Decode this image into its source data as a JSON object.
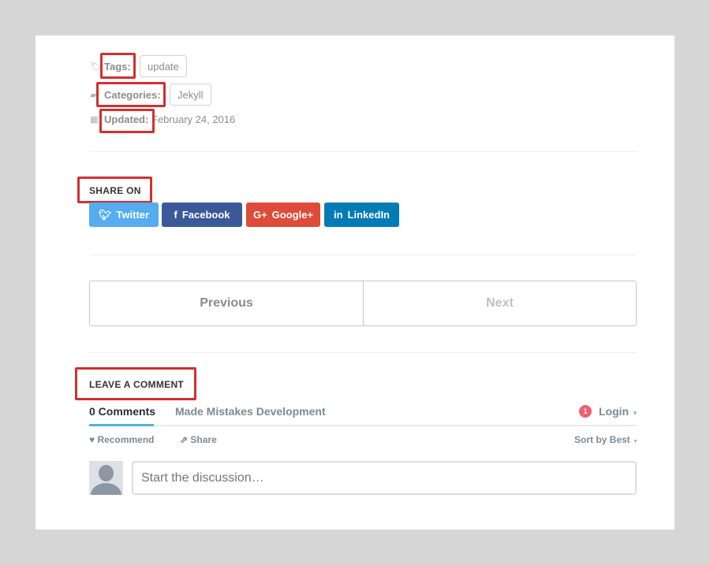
{
  "meta": {
    "tags_label": "Tags:",
    "tags": [
      "update"
    ],
    "categories_label": "Categories:",
    "categories": [
      "Jekyll"
    ],
    "updated_label": "Updated:",
    "updated_value": "February 24, 2016"
  },
  "share": {
    "heading": "SHARE ON",
    "buttons": [
      {
        "label": "Twitter",
        "icon": "twitter-icon",
        "color": "#55acee"
      },
      {
        "label": "Facebook",
        "icon": "facebook-icon",
        "color": "#3b5998"
      },
      {
        "label": "Google+",
        "icon": "google-plus-icon",
        "color": "#dd4b39"
      },
      {
        "label": "LinkedIn",
        "icon": "linkedin-icon",
        "color": "#007bb6"
      }
    ]
  },
  "pagination": {
    "previous": "Previous",
    "next": "Next"
  },
  "comments": {
    "heading": "LEAVE A COMMENT",
    "tab_comments": "0 Comments",
    "tab_community": "Made Mistakes Development",
    "notification_count": "1",
    "login": "Login",
    "recommend": "Recommend",
    "share": "Share",
    "sort": "Sort by Best",
    "placeholder": "Start the discussion…",
    "accent": "#2e9fff"
  }
}
